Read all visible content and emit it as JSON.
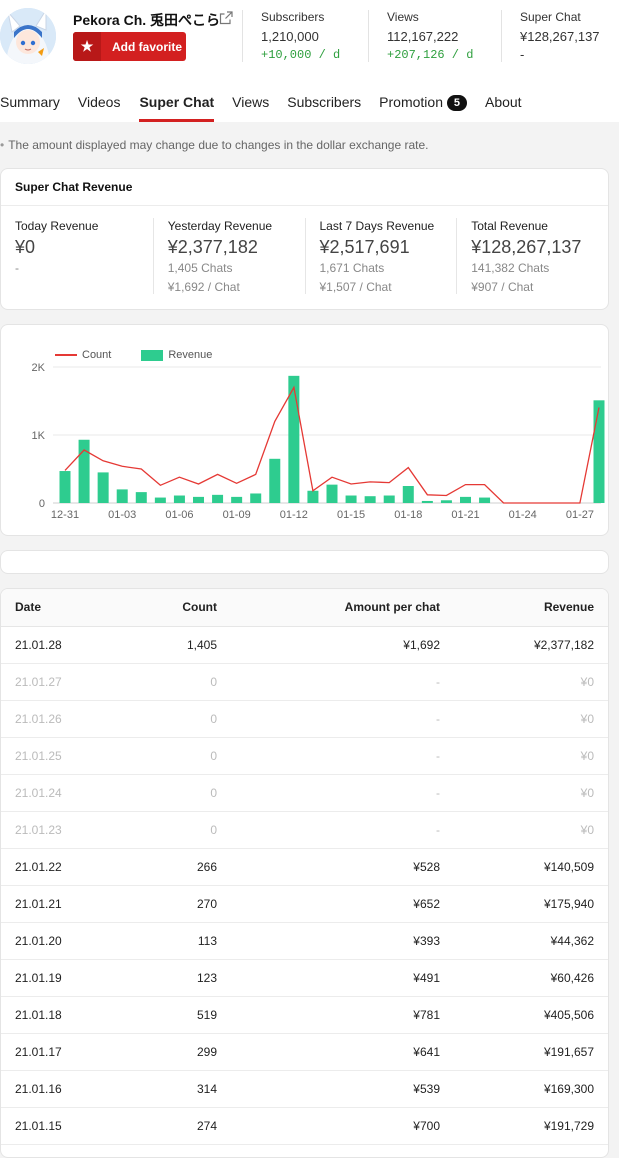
{
  "channel": {
    "name": "Pekora Ch. 兎田ぺこら",
    "favorite_label": "Add favorite"
  },
  "stats": [
    {
      "label": "Subscribers",
      "value": "1,210,000",
      "delta": "+10,000 / d"
    },
    {
      "label": "Views",
      "value": "112,167,222",
      "delta": "+207,126 / d"
    },
    {
      "label": "Super Chat",
      "value": "¥128,267,137",
      "delta": "-"
    }
  ],
  "tabs": [
    {
      "label": "Summary"
    },
    {
      "label": "Videos"
    },
    {
      "label": "Super Chat",
      "active": true
    },
    {
      "label": "Views"
    },
    {
      "label": "Subscribers"
    },
    {
      "label": "Promotion",
      "badge": "5"
    },
    {
      "label": "About"
    }
  ],
  "notice": "The amount displayed may change due to changes in the dollar exchange rate.",
  "revenue_card": {
    "title": "Super Chat Revenue",
    "columns": [
      {
        "label": "Today Revenue",
        "value": "¥0",
        "sub": "-",
        "sub2": ""
      },
      {
        "label": "Yesterday Revenue",
        "value": "¥2,377,182",
        "sub": "1,405 Chats",
        "sub2": "¥1,692 / Chat"
      },
      {
        "label": "Last 7 Days Revenue",
        "value": "¥2,517,691",
        "sub": "1,671 Chats",
        "sub2": "¥1,507 / Chat"
      },
      {
        "label": "Total Revenue",
        "value": "¥128,267,137",
        "sub": "141,382 Chats",
        "sub2": "¥907 / Chat"
      }
    ]
  },
  "chart_data": {
    "type": "bar",
    "categories": [
      "12-31",
      "01-01",
      "01-02",
      "01-03",
      "01-04",
      "01-05",
      "01-06",
      "01-07",
      "01-08",
      "01-09",
      "01-10",
      "01-11",
      "01-12",
      "01-13",
      "01-14",
      "01-15",
      "01-16",
      "01-17",
      "01-18",
      "01-19",
      "01-20",
      "01-21",
      "01-22",
      "01-23",
      "01-24",
      "01-25",
      "01-26",
      "01-27",
      "01-28"
    ],
    "tick_labels": [
      "12-31",
      "01-03",
      "01-06",
      "01-09",
      "01-12",
      "01-15",
      "01-18",
      "01-21",
      "01-24",
      "01-27"
    ],
    "series": [
      {
        "name": "Revenue",
        "type": "bar",
        "color": "#2ecc8f",
        "values": [
          470,
          930,
          450,
          200,
          160,
          80,
          110,
          90,
          120,
          90,
          140,
          650,
          1870,
          180,
          270,
          110,
          100,
          110,
          250,
          30,
          40,
          90,
          80,
          0,
          0,
          0,
          0,
          0,
          1510
        ]
      },
      {
        "name": "Count",
        "type": "line",
        "color": "#e53935",
        "values": [
          480,
          780,
          620,
          540,
          500,
          260,
          380,
          280,
          420,
          290,
          420,
          1200,
          1700,
          180,
          380,
          280,
          310,
          300,
          520,
          120,
          110,
          270,
          270,
          0,
          0,
          0,
          0,
          0,
          1405
        ]
      }
    ],
    "yticks": [
      "0",
      "1K",
      "2K"
    ],
    "ylim": [
      0,
      2000
    ],
    "legend_position": "top-left"
  },
  "table": {
    "headers": {
      "date": "Date",
      "count": "Count",
      "amount": "Amount per chat",
      "revenue": "Revenue"
    },
    "rows": [
      {
        "date": "21.01.28",
        "count": "1,405",
        "amount": "¥1,692",
        "revenue": "¥2,377,182",
        "zero": false
      },
      {
        "date": "21.01.27",
        "count": "0",
        "amount": "-",
        "revenue": "¥0",
        "zero": true
      },
      {
        "date": "21.01.26",
        "count": "0",
        "amount": "-",
        "revenue": "¥0",
        "zero": true
      },
      {
        "date": "21.01.25",
        "count": "0",
        "amount": "-",
        "revenue": "¥0",
        "zero": true
      },
      {
        "date": "21.01.24",
        "count": "0",
        "amount": "-",
        "revenue": "¥0",
        "zero": true
      },
      {
        "date": "21.01.23",
        "count": "0",
        "amount": "-",
        "revenue": "¥0",
        "zero": true
      },
      {
        "date": "21.01.22",
        "count": "266",
        "amount": "¥528",
        "revenue": "¥140,509",
        "zero": false
      },
      {
        "date": "21.01.21",
        "count": "270",
        "amount": "¥652",
        "revenue": "¥175,940",
        "zero": false
      },
      {
        "date": "21.01.20",
        "count": "113",
        "amount": "¥393",
        "revenue": "¥44,362",
        "zero": false
      },
      {
        "date": "21.01.19",
        "count": "123",
        "amount": "¥491",
        "revenue": "¥60,426",
        "zero": false
      },
      {
        "date": "21.01.18",
        "count": "519",
        "amount": "¥781",
        "revenue": "¥405,506",
        "zero": false
      },
      {
        "date": "21.01.17",
        "count": "299",
        "amount": "¥641",
        "revenue": "¥191,657",
        "zero": false
      },
      {
        "date": "21.01.16",
        "count": "314",
        "amount": "¥539",
        "revenue": "¥169,300",
        "zero": false
      },
      {
        "date": "21.01.15",
        "count": "274",
        "amount": "¥700",
        "revenue": "¥191,729",
        "zero": false
      }
    ]
  }
}
